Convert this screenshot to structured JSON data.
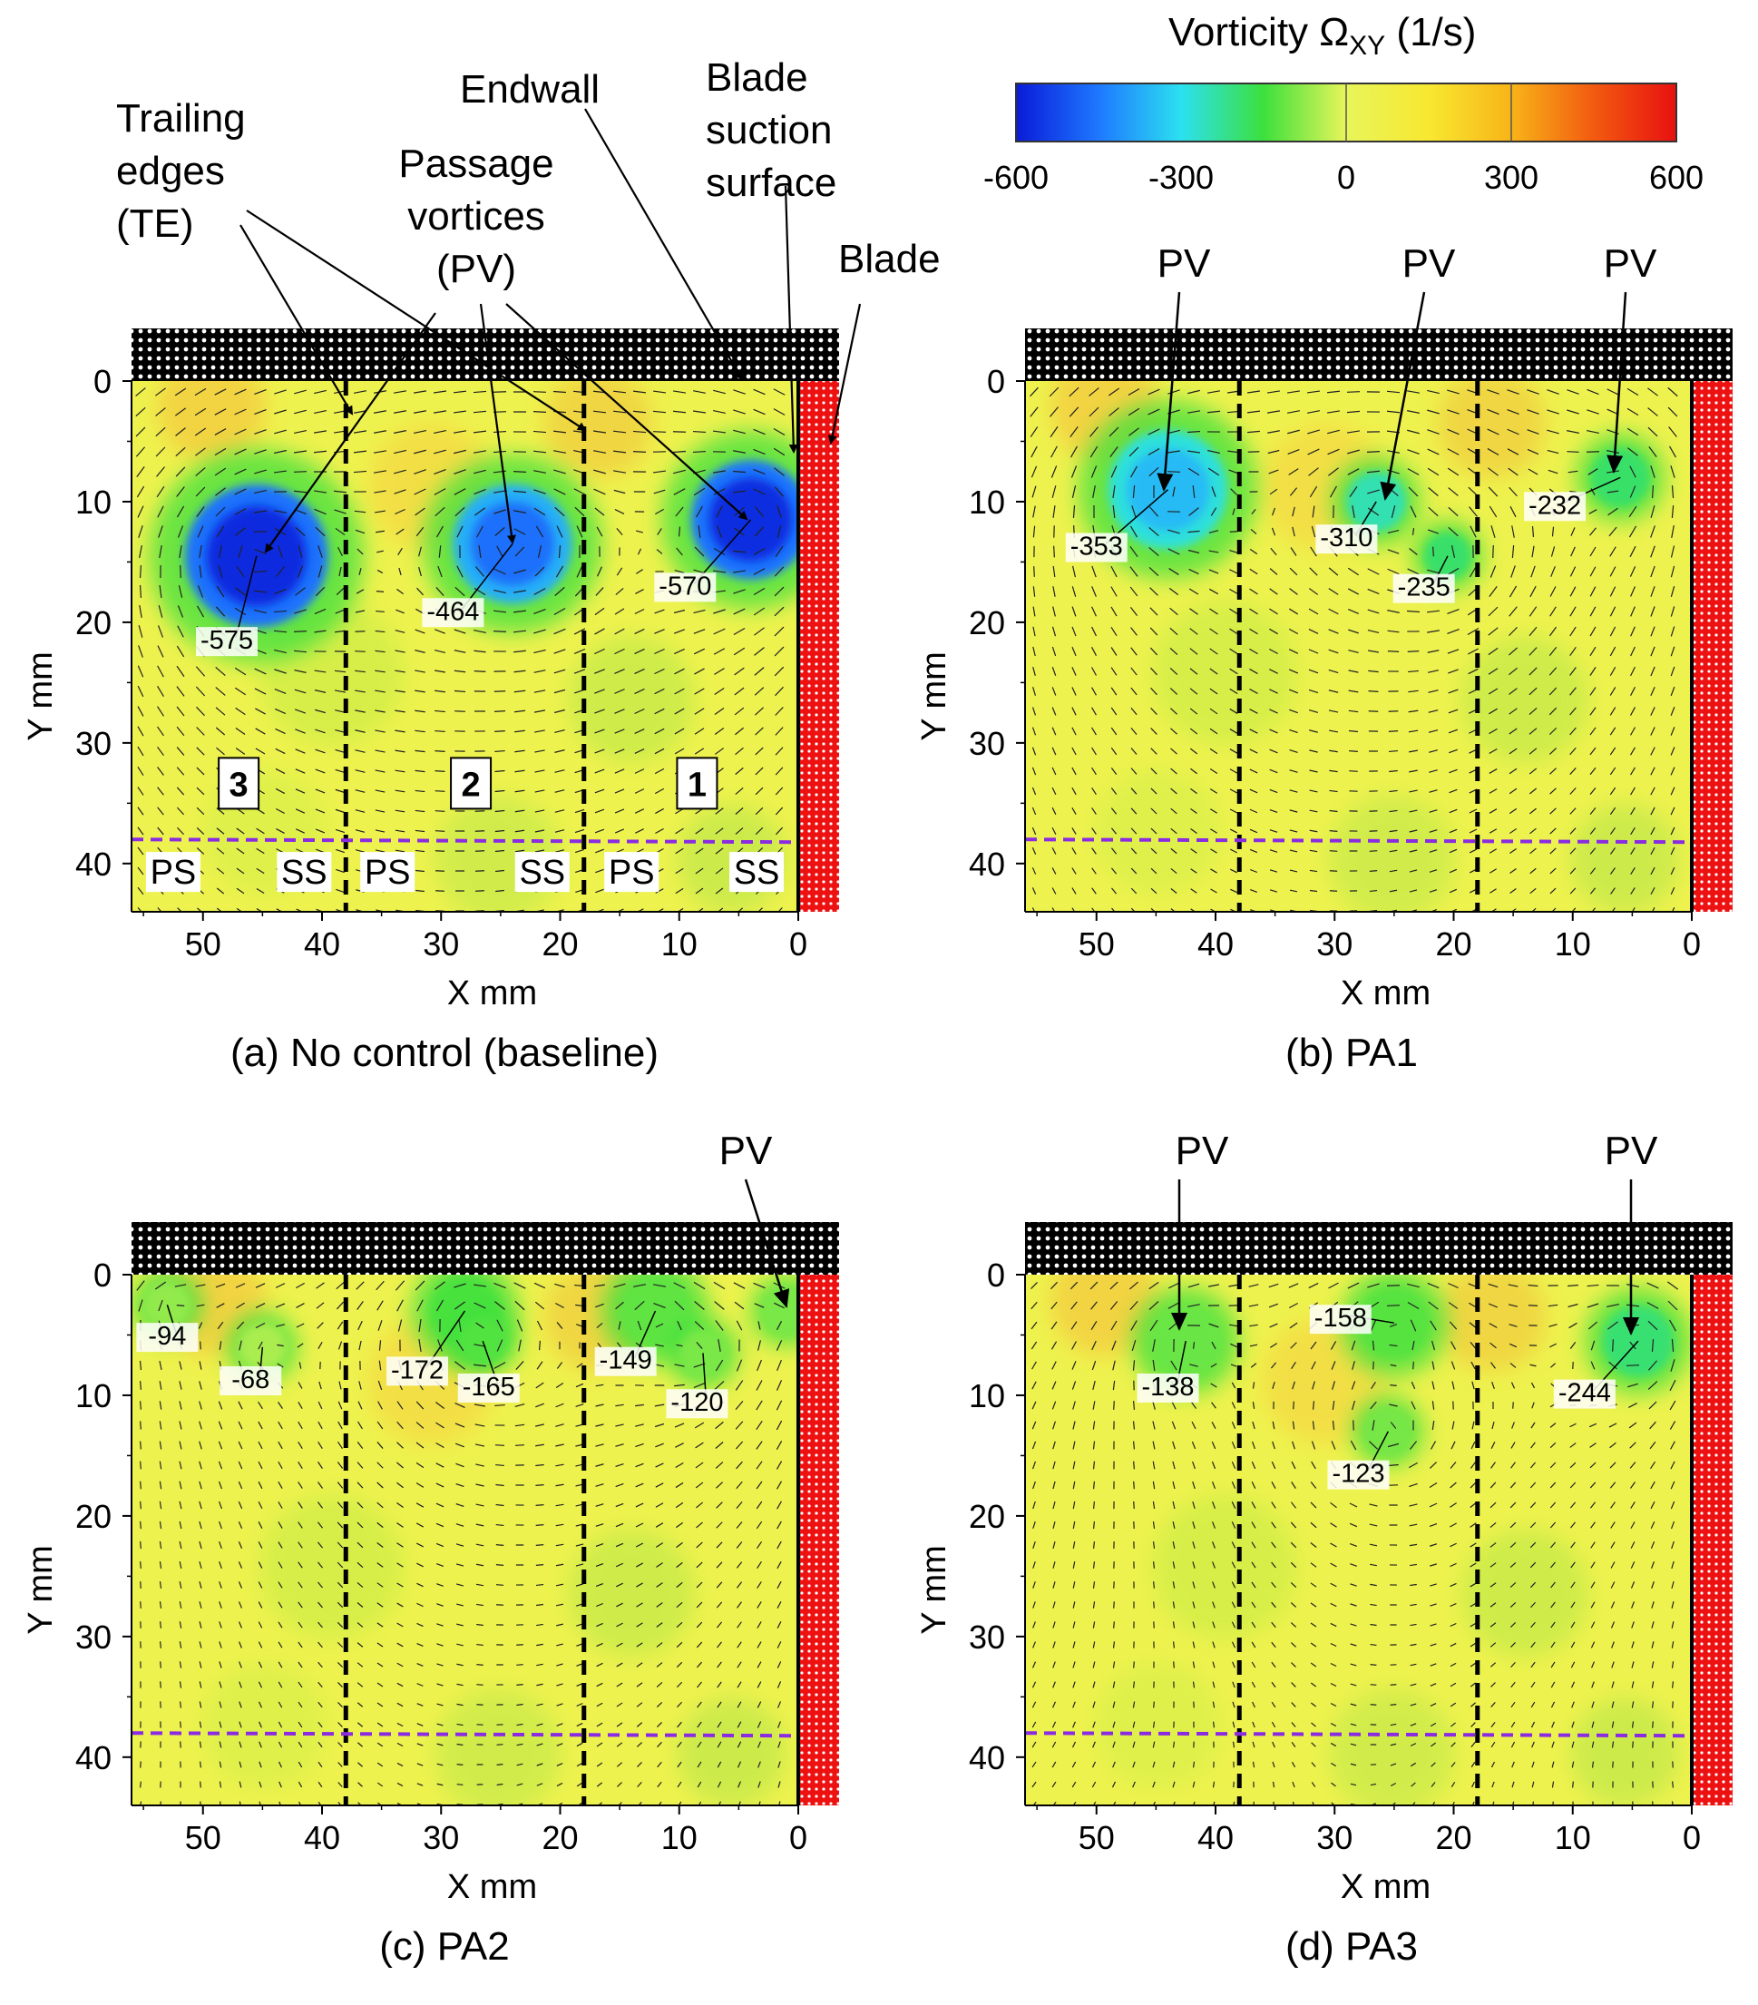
{
  "colorbar": {
    "title": "Vorticity Ω",
    "title_sub": "XY",
    "title_units": " (1/s)",
    "ticks": [
      "-600",
      "-300",
      "0",
      "300",
      "600"
    ],
    "range": [
      -600,
      600
    ],
    "colors": [
      "#0a1ad8",
      "#1e78ff",
      "#2ce0f0",
      "#3ce03c",
      "#e8f55a",
      "#f8e830",
      "#f8b418",
      "#f25a10",
      "#e81010"
    ]
  },
  "chart_data": [
    {
      "type": "heatmap",
      "panel": "a",
      "caption": "(a) No control (baseline)",
      "xlabel": "X mm",
      "ylabel": "Y mm",
      "xlim": [
        56,
        0
      ],
      "ylim": [
        0,
        44
      ],
      "xticks": [
        "50",
        "40",
        "30",
        "20",
        "10",
        "0"
      ],
      "yticks": [
        "0",
        "10",
        "20",
        "30",
        "40"
      ],
      "trailing_edges_x": [
        38,
        18
      ],
      "dashed_line_y": 38,
      "vortices": [
        {
          "x": 45.5,
          "y": 14.5,
          "r": 6,
          "value": -575
        },
        {
          "x": 24,
          "y": 13.5,
          "r": 5,
          "value": -464
        },
        {
          "x": 4,
          "y": 11.5,
          "r": 5,
          "value": -570
        }
      ],
      "labels": [
        {
          "text": "-575",
          "x": 48,
          "y": 22.2
        },
        {
          "text": "-464",
          "x": 29,
          "y": 19.8
        },
        {
          "text": "-570",
          "x": 9.5,
          "y": 17.7
        }
      ],
      "zones": [
        {
          "text": "3",
          "x": 47,
          "y": 33.5,
          "boxed": true
        },
        {
          "text": "2",
          "x": 27.5,
          "y": 33.5,
          "boxed": true
        },
        {
          "text": "1",
          "x": 8.5,
          "y": 33.5,
          "boxed": true
        },
        {
          "text": "PS",
          "x": 52.5,
          "y": 41
        },
        {
          "text": "SS",
          "x": 41.5,
          "y": 41
        },
        {
          "text": "PS",
          "x": 34.5,
          "y": 41
        },
        {
          "text": "SS",
          "x": 21.5,
          "y": 41
        },
        {
          "text": "PS",
          "x": 14,
          "y": 41
        },
        {
          "text": "SS",
          "x": 3.5,
          "y": 41
        }
      ]
    },
    {
      "type": "heatmap",
      "panel": "b",
      "caption": "(b) PA1",
      "xlabel": "X mm",
      "ylabel": "Y mm",
      "xlim": [
        56,
        0
      ],
      "ylim": [
        0,
        44
      ],
      "xticks": [
        "50",
        "40",
        "30",
        "20",
        "10",
        "0"
      ],
      "yticks": [
        "0",
        "10",
        "20",
        "30",
        "40"
      ],
      "trailing_edges_x": [
        38,
        18
      ],
      "dashed_line_y": 38,
      "vortices": [
        {
          "x": 44,
          "y": 9,
          "r": 5,
          "value": -353
        },
        {
          "x": 26.5,
          "y": 10,
          "r": 2.5,
          "value": -310
        },
        {
          "x": 20.5,
          "y": 14.5,
          "r": 2,
          "value": -235
        },
        {
          "x": 6,
          "y": 8,
          "r": 2.5,
          "value": -232
        }
      ],
      "labels": [
        {
          "text": "-353",
          "x": 50,
          "y": 14.4
        },
        {
          "text": "-310",
          "x": 29,
          "y": 13.7
        },
        {
          "text": "-235",
          "x": 22.5,
          "y": 17.8
        },
        {
          "text": "-232",
          "x": 11.5,
          "y": 11
        }
      ],
      "zones": []
    },
    {
      "type": "heatmap",
      "panel": "c",
      "caption": "(c) PA2",
      "xlabel": "X mm",
      "ylabel": "Y mm",
      "xlim": [
        56,
        0
      ],
      "ylim": [
        0,
        44
      ],
      "xticks": [
        "50",
        "40",
        "30",
        "20",
        "10",
        "0"
      ],
      "yticks": [
        "0",
        "10",
        "20",
        "30",
        "40"
      ],
      "trailing_edges_x": [
        38,
        18
      ],
      "dashed_line_y": 38,
      "vortices": [
        {
          "x": 53,
          "y": 2.5,
          "r": 2,
          "value": -94
        },
        {
          "x": 45,
          "y": 6,
          "r": 2,
          "value": -68
        },
        {
          "x": 28,
          "y": 3,
          "r": 3,
          "value": -172
        },
        {
          "x": 26.5,
          "y": 5.5,
          "r": 2,
          "value": -165
        },
        {
          "x": 12,
          "y": 3,
          "r": 3,
          "value": -149
        },
        {
          "x": 8,
          "y": 6.5,
          "r": 2,
          "value": -120
        },
        {
          "x": 1,
          "y": 3,
          "r": 2,
          "value": -120
        }
      ],
      "labels": [
        {
          "text": "-94",
          "x": 53,
          "y": 5.8
        },
        {
          "text": "-68",
          "x": 46,
          "y": 9.4
        },
        {
          "text": "-172",
          "x": 32,
          "y": 8.6
        },
        {
          "text": "-165",
          "x": 26,
          "y": 10
        },
        {
          "text": "-149",
          "x": 14.5,
          "y": 7.8
        },
        {
          "text": "-120",
          "x": 8.5,
          "y": 11.3
        }
      ],
      "zones": []
    },
    {
      "type": "heatmap",
      "panel": "d",
      "caption": "(d) PA3",
      "xlabel": "X mm",
      "ylabel": "Y mm",
      "xlim": [
        56,
        0
      ],
      "ylim": [
        0,
        44
      ],
      "xticks": [
        "50",
        "40",
        "30",
        "20",
        "10",
        "0"
      ],
      "yticks": [
        "0",
        "10",
        "20",
        "30",
        "40"
      ],
      "trailing_edges_x": [
        38,
        18
      ],
      "dashed_line_y": 38,
      "vortices": [
        {
          "x": 42.5,
          "y": 5.5,
          "r": 3,
          "value": -138
        },
        {
          "x": 25,
          "y": 4,
          "r": 3,
          "value": -158
        },
        {
          "x": 25.5,
          "y": 13,
          "r": 2,
          "value": -123
        },
        {
          "x": 4.5,
          "y": 5.5,
          "r": 3,
          "value": -244
        }
      ],
      "labels": [
        {
          "text": "-138",
          "x": 44,
          "y": 10
        },
        {
          "text": "-158",
          "x": 29.5,
          "y": 4.3
        },
        {
          "text": "-123",
          "x": 28,
          "y": 17.2
        },
        {
          "text": "-244",
          "x": 9,
          "y": 10.5
        }
      ],
      "zones": []
    }
  ],
  "annotations": {
    "trailing_edges": "Trailing\nedges\n(TE)",
    "passage_vortices": "Passage\nvortices\n(PV)",
    "endwall": "Endwall",
    "blade_suction_surface": "Blade\nsuction\nsurface",
    "blade": "Blade",
    "pv": "PV"
  }
}
